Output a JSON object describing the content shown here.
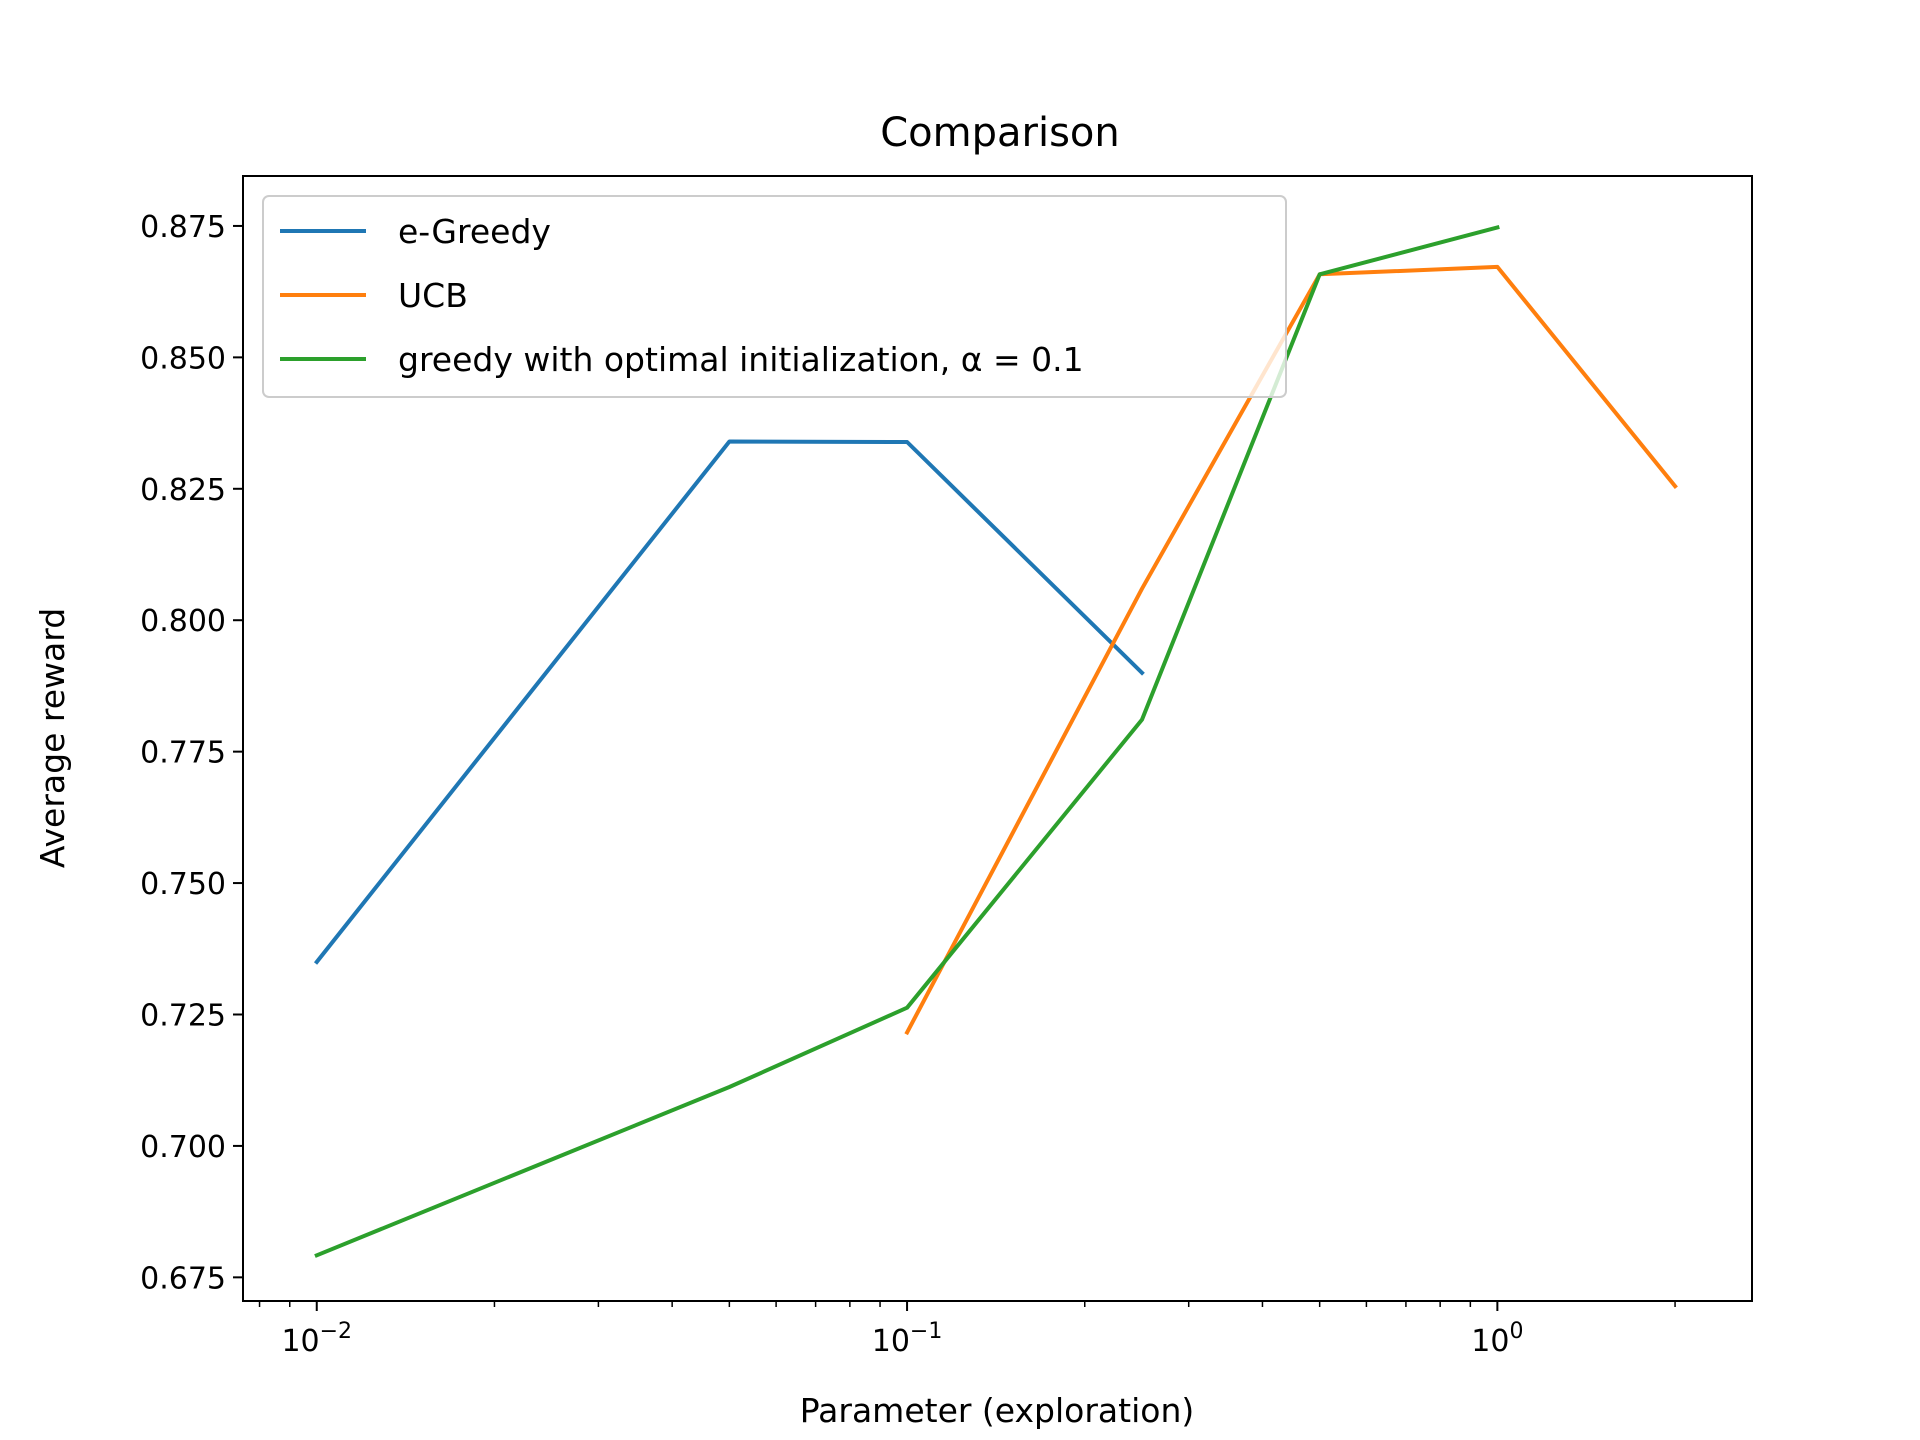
{
  "chart_data": {
    "type": "line",
    "title": "Comparison",
    "xlabel": "Parameter (exploration)",
    "ylabel": "Average reward",
    "xscale": "log",
    "xlim": [
      0.0075,
      2.7
    ],
    "ylim": [
      0.6705,
      0.8845
    ],
    "x_ticks": [
      {
        "value": 0.01,
        "base": "10",
        "exp": "−2"
      },
      {
        "value": 0.1,
        "base": "10",
        "exp": "−1"
      },
      {
        "value": 1,
        "base": "10",
        "exp": "0"
      }
    ],
    "y_ticks": [
      "0.675",
      "0.700",
      "0.725",
      "0.750",
      "0.775",
      "0.800",
      "0.825",
      "0.850",
      "0.875"
    ],
    "grid": false,
    "legend_position": "top-left",
    "series": [
      {
        "name": "e-Greedy",
        "color": "#1f77b4",
        "x": [
          0.01,
          0.05,
          0.1,
          0.25
        ],
        "y": [
          0.735,
          0.834,
          0.8339,
          0.79
        ]
      },
      {
        "name": "UCB",
        "color": "#ff7f0e",
        "x": [
          0.1,
          0.25,
          0.5,
          1,
          2
        ],
        "y": [
          0.7216,
          0.806,
          0.8658,
          0.8672,
          0.8255
        ]
      },
      {
        "name": "greedy with optimal initialization, α = 0.1",
        "color": "#2ca02c",
        "x": [
          0.01,
          0.05,
          0.1,
          0.25,
          0.5,
          1
        ],
        "y": [
          0.6792,
          0.7112,
          0.7263,
          0.7811,
          0.8658,
          0.8747
        ]
      }
    ]
  }
}
